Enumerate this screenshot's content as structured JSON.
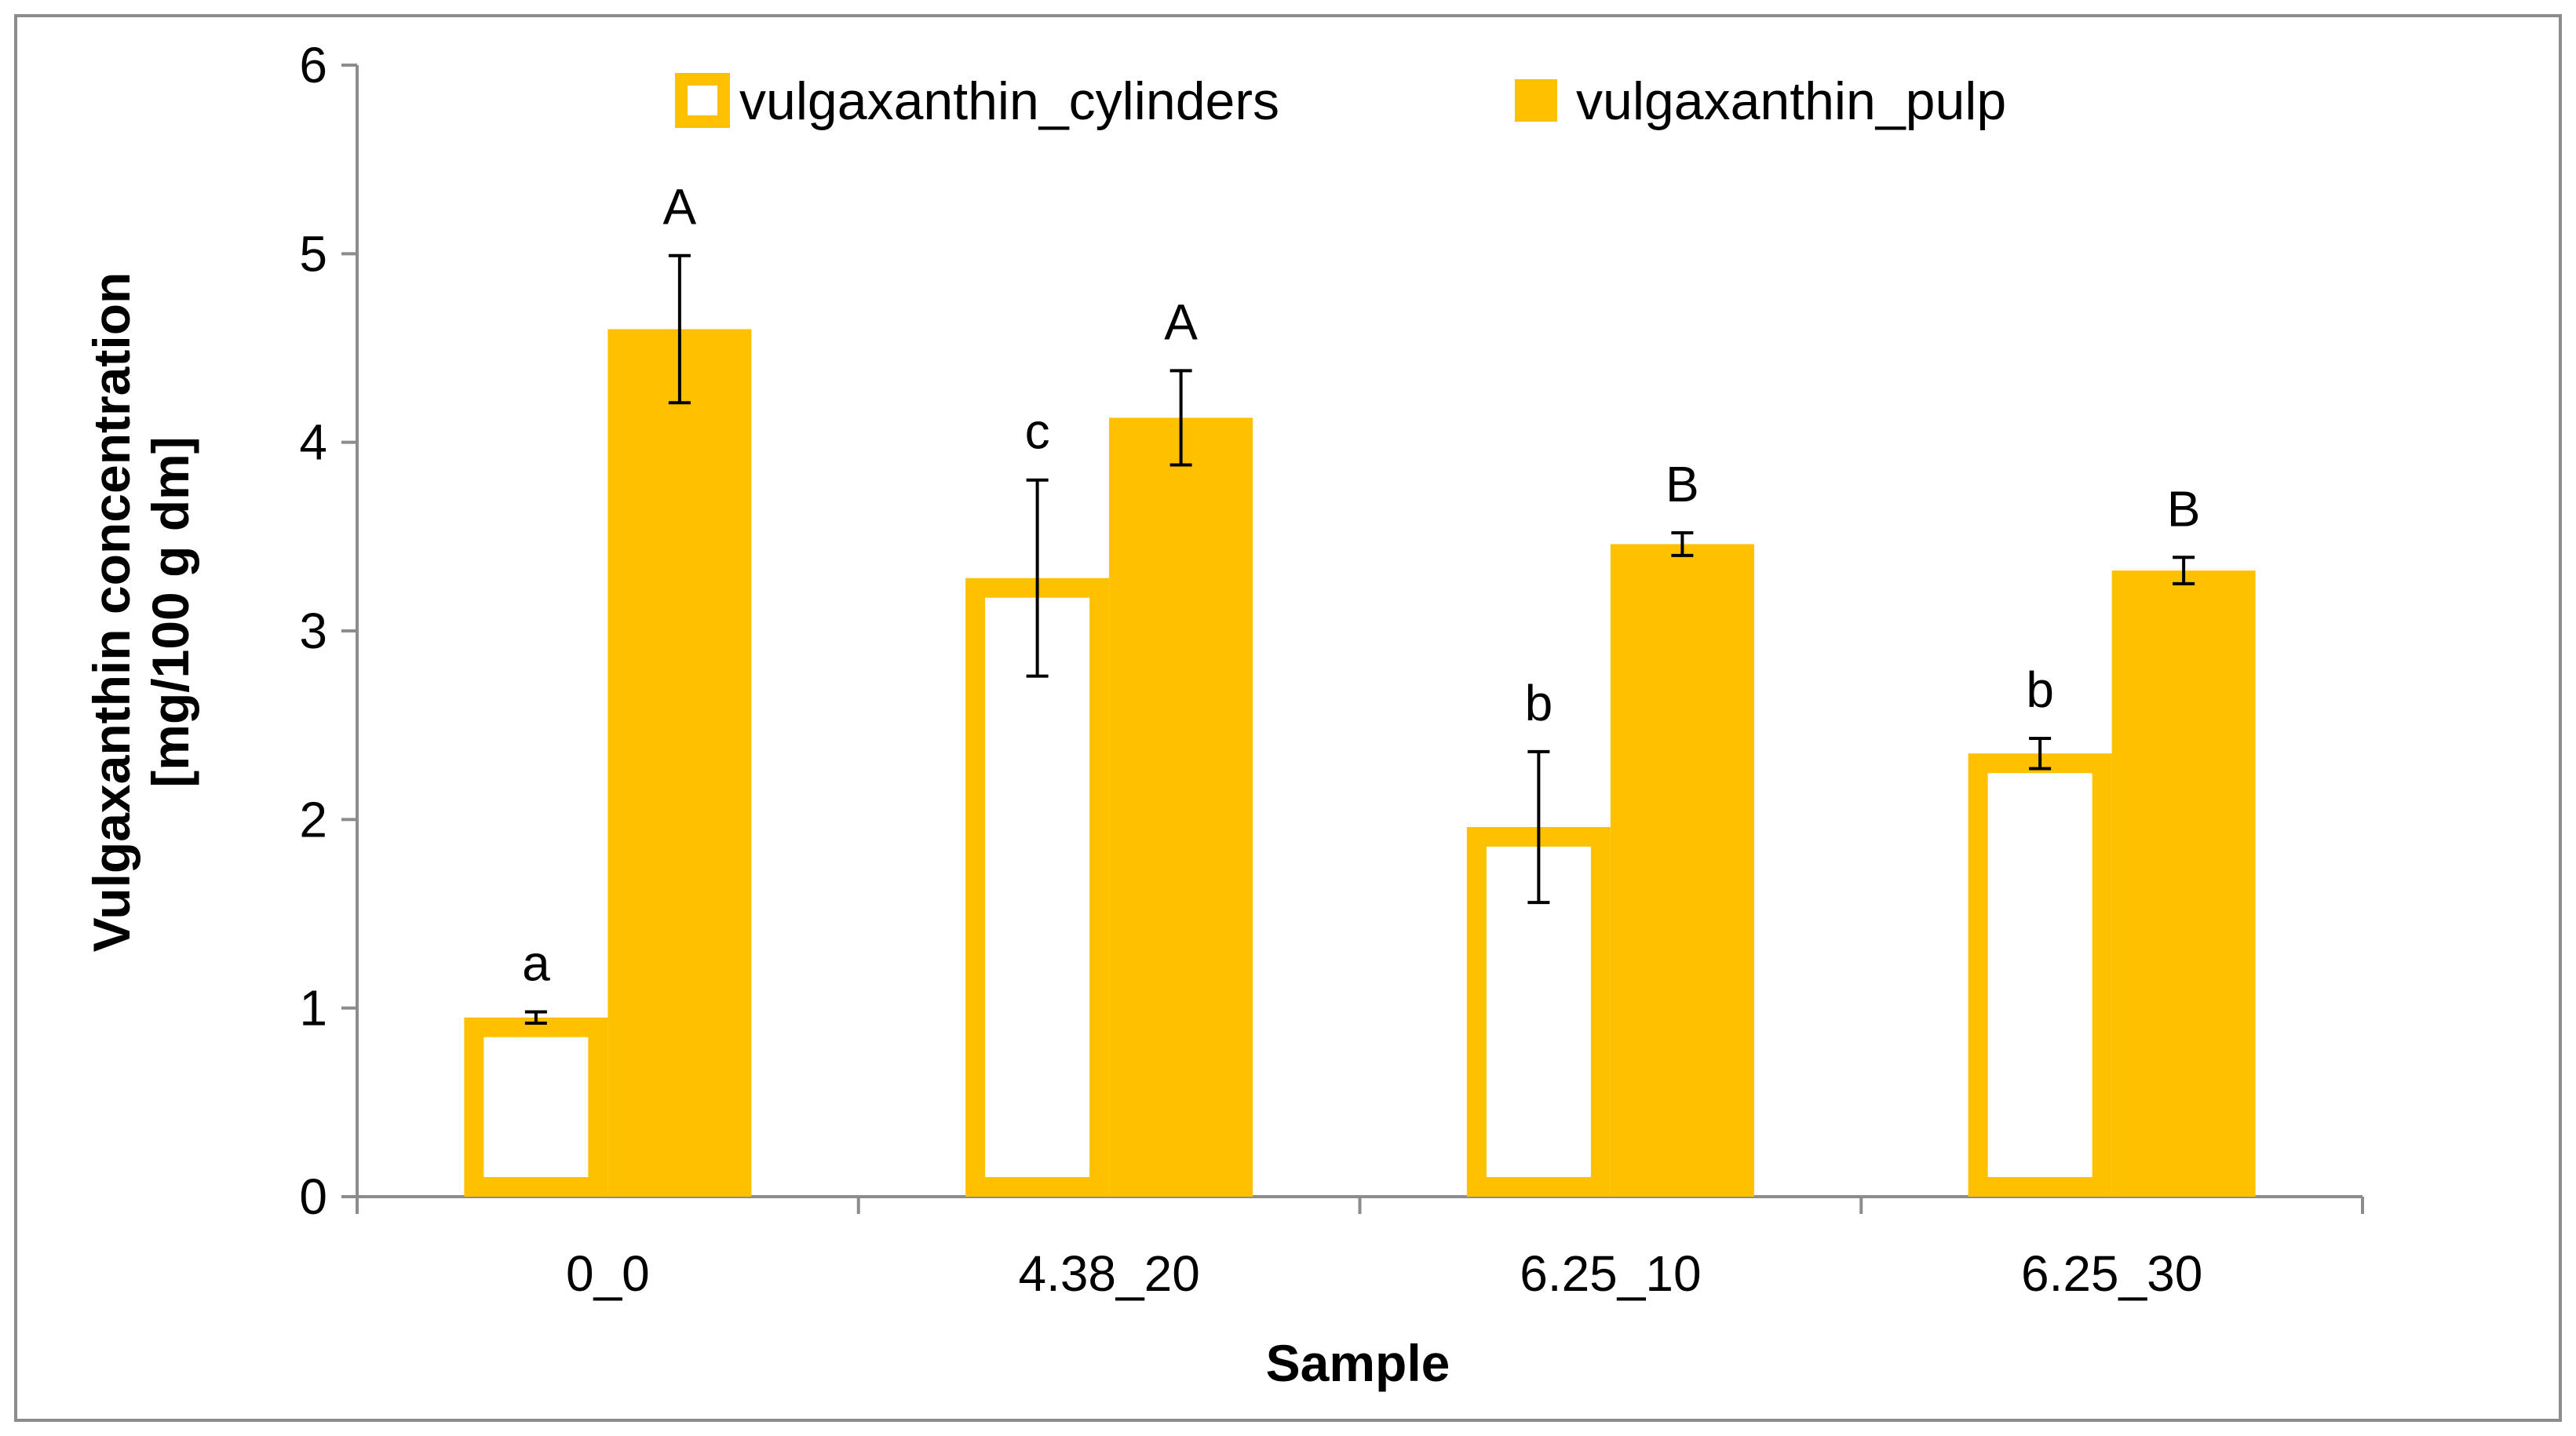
{
  "colors": {
    "accent": "#FFC000",
    "frame": "#8C8C8C",
    "axis": "#8C8C8C",
    "text": "#000000",
    "error": "#000000"
  },
  "chart_data": {
    "type": "bar",
    "title": "",
    "xlabel": "Sample",
    "ylabel_line1": "Vulgaxanthin concentration",
    "ylabel_line2": "[mg/100 g dm]",
    "ylim": [
      0,
      6
    ],
    "yticks": [
      "0",
      "1",
      "2",
      "3",
      "4",
      "5",
      "6"
    ],
    "legend_position": "top-center",
    "categories": [
      "0_0",
      "4.38_20",
      "6.25_10",
      "6.25_30"
    ],
    "series": [
      {
        "name": "vulgaxanthin_cylinders",
        "style": "outline",
        "values": [
          0.95,
          3.28,
          1.96,
          2.35
        ],
        "errors": [
          0.03,
          0.52,
          0.4,
          0.08
        ],
        "labels": [
          "a",
          "c",
          "b",
          "b"
        ]
      },
      {
        "name": "vulgaxanthin_pulp",
        "style": "filled",
        "values": [
          4.6,
          4.13,
          3.46,
          3.32
        ],
        "errors": [
          0.39,
          0.25,
          0.06,
          0.07
        ],
        "labels": [
          "A",
          "A",
          "B",
          "B"
        ]
      }
    ]
  }
}
